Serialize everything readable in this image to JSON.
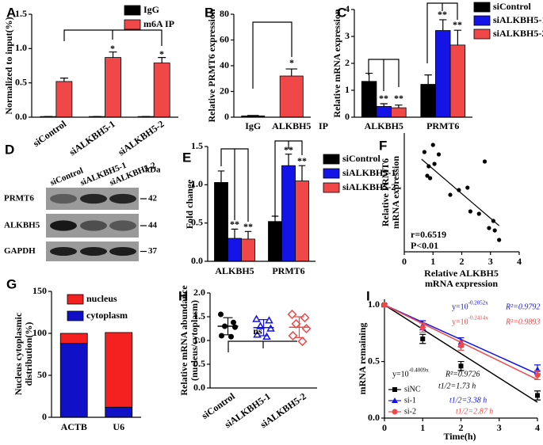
{
  "chart_data": [
    {
      "type": "bar",
      "panel": "A",
      "ylabel": "Normalized to input(%)",
      "categories": [
        "siControl",
        "siALKBH5-1",
        "siALKBH5-2"
      ],
      "series": [
        {
          "name": "IgG",
          "color": "#000000",
          "values": [
            0.01,
            0.01,
            0.01
          ],
          "errors": [
            0,
            0,
            0
          ]
        },
        {
          "name": "m6A  IP",
          "color": "#f04848",
          "values": [
            0.52,
            0.87,
            0.79
          ],
          "errors": [
            0.05,
            0.08,
            0.08
          ]
        }
      ],
      "ylim": [
        0,
        1.5
      ],
      "yticks": [
        {
          "value": 0,
          "label": "0.0"
        },
        {
          "value": 0.5,
          "label": "0.5"
        },
        {
          "value": 1,
          "label": "1.0"
        },
        {
          "value": 1.5,
          "label": "1.5"
        }
      ],
      "annotations": [
        "*",
        "*"
      ]
    },
    {
      "type": "bar",
      "panel": "B",
      "ylabel": "Relative PRMT6 expression",
      "xlabel": "IP",
      "categories": [
        "IgG",
        "ALKBH5"
      ],
      "series": [
        {
          "colors": [
            "#000000",
            "#f04848"
          ],
          "values": [
            1,
            32
          ],
          "errors": [
            0.3,
            5.5
          ]
        }
      ],
      "ylim": [
        0,
        80
      ],
      "yticks": [
        0,
        20,
        40,
        60,
        80
      ],
      "annotations": [
        "*"
      ]
    },
    {
      "type": "bar",
      "panel": "C",
      "ylabel": "Relative mRNA expression",
      "categories": [
        "ALKBH5",
        "PRMT6"
      ],
      "series": [
        {
          "name": "siControl",
          "color": "#000000",
          "values": [
            1.33,
            1.22
          ],
          "errors": [
            0.3,
            0.35
          ]
        },
        {
          "name": "siALKBH5-1",
          "color": "#1414e6",
          "values": [
            0.4,
            3.22
          ],
          "errors": [
            0.1,
            0.4
          ]
        },
        {
          "name": "siALKBH5-2",
          "color": "#f04848",
          "values": [
            0.35,
            2.68
          ],
          "errors": [
            0.1,
            0.55
          ]
        }
      ],
      "ylim": [
        0,
        4
      ],
      "yticks": [
        0,
        1,
        2,
        3,
        4
      ],
      "annotations": [
        "**",
        "**",
        "**",
        "**"
      ]
    },
    {
      "type": "blot",
      "panel": "D",
      "lanes": [
        "siControl",
        "siALKBH5-1",
        "siALKBH5-2"
      ],
      "unit": "kDa",
      "rows": [
        {
          "name": "PRMT6",
          "size": 42
        },
        {
          "name": "ALKBH5",
          "size": 44
        },
        {
          "name": "GAPDH",
          "size": 37
        }
      ]
    },
    {
      "type": "bar",
      "panel": "E",
      "ylabel": "Fold change",
      "categories": [
        "ALKBH5",
        "PRMT6"
      ],
      "series": [
        {
          "name": "siControl",
          "color": "#000000",
          "values": [
            1.03,
            0.52
          ],
          "errors": [
            0.15,
            0.07
          ]
        },
        {
          "name": "siALKBH5-1",
          "color": "#1414e6",
          "values": [
            0.3,
            1.25
          ],
          "errors": [
            0.12,
            0.15
          ]
        },
        {
          "name": "siALKBH5-2",
          "color": "#f04848",
          "values": [
            0.29,
            1.05
          ],
          "errors": [
            0.1,
            0.2
          ]
        }
      ],
      "ylim": [
        0,
        1.5
      ],
      "yticks": [
        {
          "value": 0,
          "label": "0.0"
        },
        {
          "value": 0.5,
          "label": "0.5"
        },
        {
          "value": 1,
          "label": "1.0"
        },
        {
          "value": 1.5,
          "label": "1.5"
        }
      ],
      "annotations": [
        "**",
        "**",
        "**",
        "**"
      ]
    },
    {
      "type": "scatter",
      "panel": "F",
      "ylabel": [
        "Relative PRMT6",
        "mRNA expression"
      ],
      "xlabel": [
        "Relative ALKBH5",
        "mRNA expression"
      ],
      "x": [
        0.7,
        0.8,
        0.85,
        0.9,
        1.0,
        1.05,
        1.2,
        1.6,
        1.9,
        2.2,
        2.3,
        2.6,
        2.8,
        2.95,
        3.1,
        3.15,
        3.3
      ],
      "y": [
        4.2,
        3.2,
        3.6,
        3.1,
        4.5,
        3.7,
        4.1,
        2.4,
        2.6,
        2.7,
        1.7,
        1.6,
        3.8,
        1.0,
        1.3,
        0.9,
        0.5
      ],
      "fit": {
        "x": [
          0.6,
          3.3
        ],
        "y": [
          3.9,
          1.1
        ]
      },
      "xlim": [
        0,
        4
      ],
      "xticks": [
        0,
        1,
        2,
        3,
        4
      ],
      "ylim": [
        0,
        5
      ],
      "annotations": [
        "r=0.6519",
        "P<0.01"
      ]
    },
    {
      "type": "stacked_bar",
      "panel": "G",
      "ylabel": [
        "Nucleus cytoplasmic",
        "distribution(%)"
      ],
      "categories": [
        "ACTB",
        "U6"
      ],
      "series": [
        {
          "name": "nucleus",
          "color": "#f52020",
          "values": [
            12,
            89
          ]
        },
        {
          "name": "cytoplasm",
          "color": "#1010c8",
          "values": [
            88,
            12
          ]
        }
      ],
      "ylim": [
        0,
        150
      ],
      "yticks": [
        0,
        50,
        100,
        150
      ]
    },
    {
      "type": "dot",
      "panel": "H",
      "ylabel": [
        "Relative mRNA abundance",
        "(nucleus/cytoplasm)"
      ],
      "categories": [
        "siControl",
        "siALKBH5-1",
        "siALKBH5-2"
      ],
      "groups": [
        {
          "color": "#000000",
          "values": [
            1.55,
            1.38,
            1.3,
            1.28,
            1.1,
            1.08
          ],
          "mean": 1.3,
          "sd": 0.18
        },
        {
          "color": "#1414e6",
          "values": [
            1.45,
            1.42,
            1.3,
            1.25,
            1.12,
            1.08
          ],
          "mean": 1.27,
          "sd": 0.17
        },
        {
          "color": "#f04848",
          "values": [
            1.55,
            1.48,
            1.35,
            1.25,
            1.1,
            0.98
          ],
          "mean": 1.28,
          "sd": 0.22
        }
      ],
      "ylim": [
        0,
        2
      ],
      "yticks": [
        {
          "value": 0,
          "label": "0.0"
        },
        {
          "value": 0.5,
          "label": "0.5"
        },
        {
          "value": 1,
          "label": "1.0"
        },
        {
          "value": 1.5,
          "label": "1.5"
        },
        {
          "value": 2,
          "label": "2.0"
        }
      ],
      "annotations": [
        "ns"
      ]
    },
    {
      "type": "line",
      "panel": "I",
      "ylabel": "mRNA remaining",
      "xlabel": "Time(h)",
      "x": [
        0,
        1,
        2,
        4
      ],
      "fit_x": [
        0,
        4
      ],
      "series": [
        {
          "name": "siNC",
          "color": "#000000",
          "values": [
            1,
            0.7,
            0.46,
            0.2
          ],
          "errors": [
            0.01,
            0.04,
            0.04,
            0.04
          ],
          "fit": [
            1,
            0.14
          ],
          "equation": "y=10",
          "exponent": "-0.4009x",
          "r2": "R²=0.9726",
          "half_life": "t1/2=1.73 h"
        },
        {
          "name": "si-1",
          "color": "#1414e6",
          "values": [
            1,
            0.82,
            0.67,
            0.43
          ],
          "errors": [
            0.01,
            0.04,
            0.04,
            0.04
          ],
          "fit": [
            1,
            0.39
          ],
          "equation": "y=10",
          "exponent": "-0.2052x",
          "r2": "R²=0.9792",
          "half_life": "t1/2=3.38 h"
        },
        {
          "name": "si-2",
          "color": "#f04848",
          "values": [
            1,
            0.8,
            0.64,
            0.38
          ],
          "errors": [
            0.01,
            0.04,
            0.04,
            0.04
          ],
          "fit": [
            1,
            0.34
          ],
          "equation": "y=10",
          "exponent": "-0.2414x",
          "r2": "R²=0.9893",
          "half_life": "t1/2=2.87 h"
        }
      ],
      "xlim": [
        0,
        4
      ],
      "xticks": [
        0,
        1,
        2,
        3,
        4
      ],
      "ylim": [
        0,
        1.05
      ],
      "yticks": [
        {
          "value": 0,
          "label": "0.0"
        },
        {
          "value": 0.5,
          "label": "0.5"
        },
        {
          "value": 1,
          "label": "1.0"
        }
      ]
    }
  ]
}
